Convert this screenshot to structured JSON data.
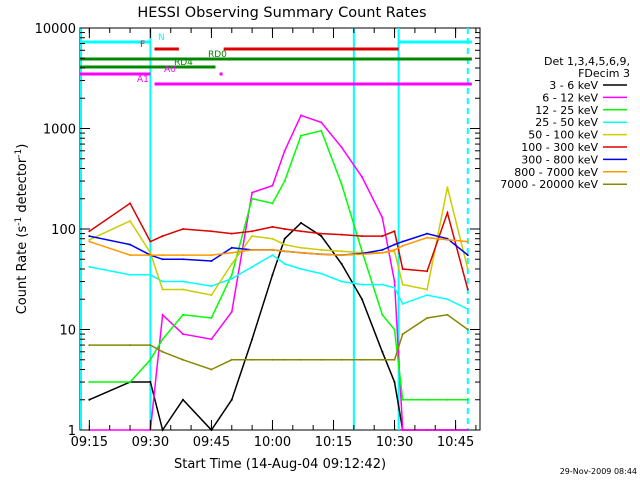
{
  "chart_data": {
    "type": "line",
    "title": "HESSI Observing Summary Count Rates",
    "xlabel": "Start Time (14-Aug-04 09:12:42)",
    "ylabel": "Count Rate (s⁻¹ detector⁻¹)",
    "ylabel_main": "Count Rate (s",
    "ylabel_sup1": "-1",
    "ylabel_mid": " detector",
    "ylabel_sup2": "-1",
    "ylabel_end": ")",
    "yscale": "log",
    "ylim": [
      1,
      10000
    ],
    "xlim": [
      "09:12:42",
      "10:51:00"
    ],
    "x_ticks": [
      "09:15",
      "09:30",
      "09:45",
      "10:00",
      "10:15",
      "10:30",
      "10:45"
    ],
    "y_ticks": [
      "1",
      "10",
      "100",
      "1000",
      "10000"
    ],
    "grid": false,
    "legend_header": [
      "Det 1,3,4,5,6,9,",
      "FDecim 3"
    ],
    "timestamp": "29-Nov-2009 08:44",
    "series": [
      {
        "name": "3 - 6 keV",
        "color": "#000000",
        "x": [
          "09:15",
          "09:25",
          "09:30",
          "09:33",
          "09:38",
          "09:45",
          "09:50",
          "09:55",
          "10:00",
          "10:03",
          "10:07",
          "10:12",
          "10:17",
          "10:22",
          "10:27",
          "10:30",
          "10:32",
          "10:38",
          "10:43",
          "10:48"
        ],
        "y": [
          2,
          3,
          3,
          1,
          2,
          1,
          2,
          8,
          35,
          80,
          115,
          85,
          45,
          20,
          6,
          3,
          1,
          1,
          1,
          1
        ]
      },
      {
        "name": "6 - 12 keV",
        "color": "#ff00ff",
        "x": [
          "09:15",
          "09:25",
          "09:30",
          "09:33",
          "09:38",
          "09:45",
          "09:50",
          "09:55",
          "10:00",
          "10:03",
          "10:07",
          "10:12",
          "10:17",
          "10:22",
          "10:27",
          "10:30",
          "10:32",
          "10:38",
          "10:43",
          "10:48"
        ],
        "y": [
          1,
          1,
          1,
          14,
          9,
          8,
          15,
          230,
          270,
          600,
          1350,
          1150,
          650,
          330,
          130,
          30,
          1,
          1,
          1,
          1
        ]
      },
      {
        "name": "12 - 25 keV",
        "color": "#00ff00",
        "x": [
          "09:15",
          "09:25",
          "09:30",
          "09:33",
          "09:38",
          "09:45",
          "09:50",
          "09:55",
          "10:00",
          "10:03",
          "10:07",
          "10:12",
          "10:17",
          "10:22",
          "10:27",
          "10:30",
          "10:32",
          "10:38",
          "10:43",
          "10:48"
        ],
        "y": [
          3,
          3,
          5,
          8,
          14,
          13,
          35,
          200,
          180,
          300,
          850,
          950,
          280,
          60,
          14,
          10,
          2,
          2,
          2,
          2
        ]
      },
      {
        "name": "25 - 50 keV",
        "color": "#00ffff",
        "x": [
          "09:15",
          "09:25",
          "09:30",
          "09:33",
          "09:38",
          "09:45",
          "09:50",
          "09:55",
          "10:00",
          "10:03",
          "10:07",
          "10:12",
          "10:17",
          "10:22",
          "10:27",
          "10:30",
          "10:32",
          "10:38",
          "10:43",
          "10:48"
        ],
        "y": [
          42,
          35,
          35,
          30,
          30,
          27,
          32,
          42,
          55,
          45,
          40,
          36,
          30,
          28,
          28,
          26,
          18,
          22,
          20,
          16
        ]
      },
      {
        "name": "50 - 100 keV",
        "color": "#cccc00",
        "x": [
          "09:15",
          "09:25",
          "09:30",
          "09:33",
          "09:38",
          "09:45",
          "09:50",
          "09:55",
          "10:00",
          "10:03",
          "10:07",
          "10:12",
          "10:17",
          "10:22",
          "10:27",
          "10:30",
          "10:32",
          "10:38",
          "10:43",
          "10:48"
        ],
        "y": [
          78,
          120,
          58,
          25,
          25,
          22,
          45,
          85,
          80,
          70,
          65,
          62,
          60,
          58,
          58,
          60,
          28,
          25,
          260,
          40
        ]
      },
      {
        "name": "100 - 300 keV",
        "color": "#dd0000",
        "x": [
          "09:15",
          "09:25",
          "09:30",
          "09:33",
          "09:38",
          "09:45",
          "09:50",
          "09:55",
          "10:00",
          "10:03",
          "10:07",
          "10:12",
          "10:17",
          "10:22",
          "10:27",
          "10:30",
          "10:32",
          "10:38",
          "10:43",
          "10:48"
        ],
        "y": [
          95,
          180,
          75,
          85,
          100,
          95,
          90,
          95,
          105,
          100,
          95,
          90,
          88,
          85,
          85,
          95,
          40,
          38,
          145,
          25
        ]
      },
      {
        "name": "300 - 800 keV",
        "color": "#0000ee",
        "x": [
          "09:15",
          "09:25",
          "09:30",
          "09:33",
          "09:38",
          "09:45",
          "09:50",
          "09:55",
          "10:00",
          "10:03",
          "10:07",
          "10:12",
          "10:17",
          "10:22",
          "10:27",
          "10:30",
          "10:32",
          "10:38",
          "10:43",
          "10:48"
        ],
        "y": [
          85,
          70,
          55,
          50,
          50,
          48,
          65,
          62,
          62,
          60,
          58,
          56,
          55,
          57,
          62,
          70,
          75,
          90,
          80,
          55
        ]
      },
      {
        "name": "800 - 7000 keV",
        "color": "#ff9900",
        "x": [
          "09:15",
          "09:25",
          "09:30",
          "09:33",
          "09:38",
          "09:45",
          "09:50",
          "09:55",
          "10:00",
          "10:03",
          "10:07",
          "10:12",
          "10:17",
          "10:22",
          "10:27",
          "10:30",
          "10:32",
          "10:38",
          "10:43",
          "10:48"
        ],
        "y": [
          75,
          55,
          55,
          55,
          55,
          55,
          58,
          62,
          62,
          60,
          58,
          56,
          55,
          56,
          58,
          62,
          68,
          82,
          78,
          75
        ]
      },
      {
        "name": "7000 - 20000 keV",
        "color": "#888800",
        "x": [
          "09:15",
          "09:25",
          "09:30",
          "09:33",
          "09:38",
          "09:45",
          "09:50",
          "09:55",
          "10:00",
          "10:03",
          "10:07",
          "10:12",
          "10:17",
          "10:22",
          "10:27",
          "10:30",
          "10:32",
          "10:38",
          "10:43",
          "10:48"
        ],
        "y": [
          7,
          7,
          7,
          6,
          5,
          4,
          5,
          5,
          5,
          5,
          5,
          5,
          5,
          5,
          5,
          5,
          9,
          13,
          14,
          10
        ]
      }
    ],
    "flag_bars": [
      {
        "label": "N",
        "color": "#00ffff",
        "segments": [
          [
            "09:12:42",
            "09:30"
          ],
          [
            "10:31",
            "10:49"
          ]
        ]
      },
      {
        "label": "F",
        "color": "#dd0000",
        "segments": [
          [
            "09:31",
            "09:37"
          ],
          [
            "09:48",
            "10:31"
          ]
        ]
      },
      {
        "label": "RD0",
        "color": "#008800",
        "segments": [
          [
            "09:12:42",
            "10:31"
          ],
          [
            "10:31",
            "10:49"
          ]
        ]
      },
      {
        "label": "RD4",
        "color": "#008800",
        "segments": [
          [
            "09:12:42",
            "09:46"
          ]
        ]
      },
      {
        "label": "A0",
        "color": "#ff00ff",
        "segments": [
          [
            "09:12:42",
            "09:30"
          ],
          [
            "09:47",
            "09:47"
          ]
        ]
      },
      {
        "label": "A1",
        "color": "#ff00ff",
        "segments": [
          [
            "09:31",
            "10:49"
          ]
        ]
      }
    ],
    "vertical_markers": [
      {
        "x": "09:12:42",
        "color": "#00ffff",
        "style": "solid"
      },
      {
        "x": "09:30",
        "color": "#00ffff",
        "style": "solid"
      },
      {
        "x": "10:20",
        "color": "#00ffff",
        "style": "solid"
      },
      {
        "x": "10:31",
        "color": "#00ffff",
        "style": "solid"
      },
      {
        "x": "10:48",
        "color": "#00ffff",
        "style": "dashed"
      }
    ]
  }
}
